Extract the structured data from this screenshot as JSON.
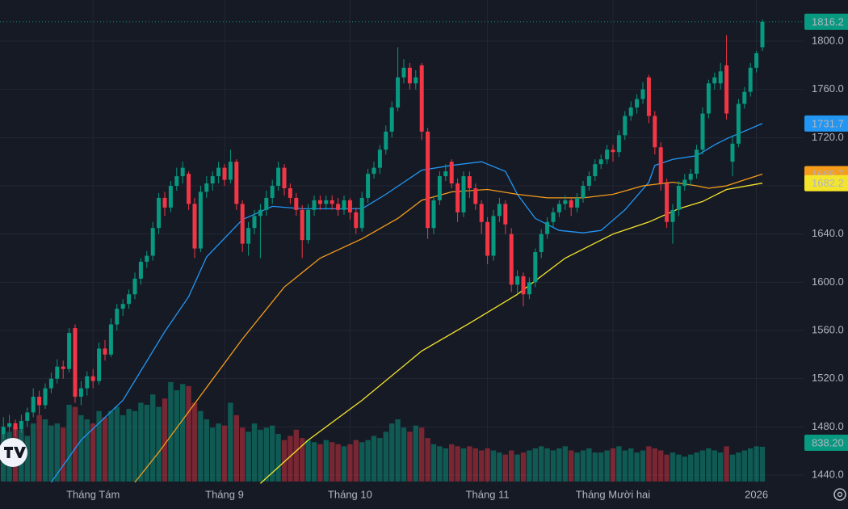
{
  "chart_data": {
    "type": "candlestick",
    "up_color": "#089981",
    "down_color": "#f23645",
    "grid": true,
    "ylim": [
      1433.3,
      1834.2
    ],
    "yticks": [
      {
        "value": 1440,
        "label": "1440.0"
      },
      {
        "value": 1480,
        "label": "1480.0"
      },
      {
        "value": 1520,
        "label": "1520.0"
      },
      {
        "value": 1560,
        "label": "1560.0"
      },
      {
        "value": 1600,
        "label": "1600.0"
      },
      {
        "value": 1640,
        "label": "1640.0"
      },
      {
        "value": 1680,
        "label": "1680.0"
      },
      {
        "value": 1720,
        "label": "1720.0"
      },
      {
        "value": 1760,
        "label": "1760.0"
      },
      {
        "value": 1800,
        "label": "1800.0"
      }
    ],
    "last_value_label": "1816.2",
    "categories": [
      null,
      null,
      null,
      null,
      null,
      null,
      null,
      null,
      null,
      null,
      null,
      null,
      null,
      null,
      null,
      "Tháng Tám",
      null,
      null,
      null,
      null,
      null,
      null,
      null,
      null,
      null,
      null,
      null,
      null,
      null,
      null,
      null,
      null,
      null,
      null,
      null,
      null,
      null,
      "Tháng 9",
      null,
      null,
      null,
      null,
      null,
      null,
      null,
      null,
      null,
      null,
      null,
      null,
      null,
      null,
      null,
      null,
      null,
      null,
      null,
      null,
      "Tháng 10",
      null,
      null,
      null,
      null,
      null,
      null,
      null,
      null,
      null,
      null,
      null,
      null,
      null,
      null,
      null,
      null,
      null,
      null,
      null,
      null,
      null,
      null,
      "Tháng 11",
      null,
      null,
      null,
      null,
      null,
      null,
      null,
      null,
      null,
      null,
      null,
      null,
      null,
      null,
      null,
      null,
      null,
      null,
      null,
      null,
      "Tháng Mười hai",
      null,
      null,
      null,
      null,
      null,
      null,
      null,
      null,
      null,
      null,
      null,
      null,
      null,
      null,
      null,
      null,
      null,
      null,
      null,
      null,
      null,
      null,
      null,
      "2026",
      null
    ],
    "candles": [
      [
        1474,
        1488,
        1470,
        1480
      ],
      [
        1480,
        1490,
        1476,
        1483
      ],
      [
        1483,
        1486,
        1472,
        1478
      ],
      [
        1478,
        1490,
        1475,
        1485
      ],
      [
        1485,
        1496,
        1480,
        1492
      ],
      [
        1492,
        1512,
        1488,
        1505
      ],
      [
        1505,
        1510,
        1490,
        1498
      ],
      [
        1498,
        1516,
        1495,
        1512
      ],
      [
        1512,
        1525,
        1508,
        1520
      ],
      [
        1520,
        1536,
        1516,
        1530
      ],
      [
        1530,
        1535,
        1520,
        1528
      ],
      [
        1528,
        1562,
        1525,
        1558
      ],
      [
        1562,
        1565,
        1500,
        1505
      ],
      [
        1505,
        1518,
        1498,
        1512
      ],
      [
        1512,
        1526,
        1506,
        1522
      ],
      [
        1522,
        1528,
        1512,
        1518
      ],
      [
        1518,
        1550,
        1515,
        1545
      ],
      [
        1545,
        1552,
        1535,
        1540
      ],
      [
        1540,
        1570,
        1538,
        1565
      ],
      [
        1565,
        1582,
        1560,
        1578
      ],
      [
        1578,
        1586,
        1572,
        1582
      ],
      [
        1582,
        1594,
        1578,
        1590
      ],
      [
        1590,
        1608,
        1586,
        1603
      ],
      [
        1603,
        1620,
        1598,
        1617
      ],
      [
        1617,
        1626,
        1612,
        1622
      ],
      [
        1622,
        1650,
        1618,
        1645
      ],
      [
        1645,
        1674,
        1640,
        1670
      ],
      [
        1670,
        1675,
        1655,
        1662
      ],
      [
        1662,
        1684,
        1658,
        1680
      ],
      [
        1680,
        1695,
        1676,
        1688
      ],
      [
        1688,
        1700,
        1682,
        1695
      ],
      [
        1690,
        1692,
        1660,
        1665
      ],
      [
        1665,
        1670,
        1620,
        1628
      ],
      [
        1628,
        1680,
        1625,
        1675
      ],
      [
        1675,
        1688,
        1670,
        1682
      ],
      [
        1682,
        1692,
        1676,
        1688
      ],
      [
        1688,
        1700,
        1682,
        1695
      ],
      [
        1695,
        1698,
        1680,
        1685
      ],
      [
        1685,
        1710,
        1682,
        1700
      ],
      [
        1700,
        1702,
        1660,
        1665
      ],
      [
        1665,
        1668,
        1625,
        1632
      ],
      [
        1632,
        1650,
        1622,
        1645
      ],
      [
        1645,
        1660,
        1640,
        1655
      ],
      [
        1655,
        1665,
        1620,
        1660
      ],
      [
        1660,
        1676,
        1655,
        1670
      ],
      [
        1670,
        1685,
        1665,
        1680
      ],
      [
        1680,
        1700,
        1676,
        1695
      ],
      [
        1695,
        1698,
        1672,
        1678
      ],
      [
        1678,
        1682,
        1665,
        1670
      ],
      [
        1670,
        1674,
        1655,
        1660
      ],
      [
        1660,
        1664,
        1620,
        1635
      ],
      [
        1635,
        1665,
        1632,
        1660
      ],
      [
        1660,
        1672,
        1655,
        1668
      ],
      [
        1668,
        1672,
        1660,
        1665
      ],
      [
        1665,
        1672,
        1660,
        1668
      ],
      [
        1668,
        1672,
        1660,
        1665
      ],
      [
        1665,
        1670,
        1655,
        1660
      ],
      [
        1660,
        1672,
        1656,
        1668
      ],
      [
        1668,
        1670,
        1652,
        1658
      ],
      [
        1658,
        1662,
        1640,
        1645
      ],
      [
        1645,
        1675,
        1642,
        1670
      ],
      [
        1670,
        1694,
        1666,
        1690
      ],
      [
        1690,
        1700,
        1686,
        1695
      ],
      [
        1695,
        1714,
        1690,
        1710
      ],
      [
        1710,
        1730,
        1706,
        1725
      ],
      [
        1725,
        1750,
        1720,
        1745
      ],
      [
        1745,
        1795,
        1742,
        1770
      ],
      [
        1770,
        1785,
        1765,
        1778
      ],
      [
        1778,
        1782,
        1760,
        1765
      ],
      [
        1765,
        1776,
        1760,
        1770
      ],
      [
        1780,
        1782,
        1718,
        1725
      ],
      [
        1725,
        1728,
        1636,
        1645
      ],
      [
        1645,
        1672,
        1640,
        1668
      ],
      [
        1668,
        1692,
        1664,
        1688
      ],
      [
        1688,
        1698,
        1684,
        1692
      ],
      [
        1700,
        1702,
        1678,
        1682
      ],
      [
        1682,
        1686,
        1650,
        1658
      ],
      [
        1658,
        1692,
        1654,
        1688
      ],
      [
        1688,
        1692,
        1670,
        1678
      ],
      [
        1678,
        1682,
        1660,
        1665
      ],
      [
        1665,
        1668,
        1640,
        1650
      ],
      [
        1650,
        1654,
        1615,
        1622
      ],
      [
        1622,
        1660,
        1618,
        1655
      ],
      [
        1655,
        1670,
        1650,
        1665
      ],
      [
        1665,
        1668,
        1640,
        1648
      ],
      [
        1640,
        1645,
        1592,
        1598
      ],
      [
        1598,
        1610,
        1590,
        1605
      ],
      [
        1605,
        1608,
        1580,
        1590
      ],
      [
        1590,
        1604,
        1586,
        1600
      ],
      [
        1600,
        1628,
        1596,
        1625
      ],
      [
        1625,
        1644,
        1620,
        1640
      ],
      [
        1640,
        1654,
        1636,
        1650
      ],
      [
        1650,
        1662,
        1646,
        1658
      ],
      [
        1658,
        1668,
        1654,
        1665
      ],
      [
        1665,
        1672,
        1660,
        1668
      ],
      [
        1668,
        1670,
        1655,
        1662
      ],
      [
        1662,
        1674,
        1658,
        1670
      ],
      [
        1670,
        1684,
        1666,
        1680
      ],
      [
        1680,
        1692,
        1676,
        1688
      ],
      [
        1688,
        1702,
        1684,
        1698
      ],
      [
        1698,
        1706,
        1694,
        1702
      ],
      [
        1702,
        1714,
        1698,
        1710
      ],
      [
        1710,
        1714,
        1700,
        1708
      ],
      [
        1708,
        1726,
        1704,
        1722
      ],
      [
        1722,
        1742,
        1718,
        1738
      ],
      [
        1738,
        1750,
        1734,
        1745
      ],
      [
        1745,
        1756,
        1740,
        1752
      ],
      [
        1752,
        1766,
        1748,
        1760
      ],
      [
        1770,
        1772,
        1732,
        1738
      ],
      [
        1738,
        1742,
        1706,
        1712
      ],
      [
        1712,
        1716,
        1676,
        1682
      ],
      [
        1682,
        1686,
        1645,
        1650
      ],
      [
        1650,
        1665,
        1632,
        1660
      ],
      [
        1660,
        1684,
        1655,
        1680
      ],
      [
        1680,
        1690,
        1676,
        1685
      ],
      [
        1685,
        1694,
        1680,
        1690
      ],
      [
        1690,
        1714,
        1686,
        1710
      ],
      [
        1710,
        1745,
        1706,
        1740
      ],
      [
        1740,
        1768,
        1736,
        1765
      ],
      [
        1765,
        1774,
        1760,
        1770
      ],
      [
        1765,
        1782,
        1760,
        1775
      ],
      [
        1780,
        1805,
        1735,
        1740
      ],
      [
        1700,
        1722,
        1688,
        1715
      ],
      [
        1715,
        1752,
        1712,
        1748
      ],
      [
        1748,
        1762,
        1744,
        1758
      ],
      [
        1758,
        1782,
        1754,
        1778
      ],
      [
        1778,
        1792,
        1774,
        1790
      ],
      [
        1795,
        1818,
        1792,
        1816.2
      ]
    ],
    "volume": {
      "lim": [
        0,
        3000
      ],
      "value_label": "838.20",
      "values": [
        1150,
        1200,
        1300,
        1250,
        1100,
        1400,
        1600,
        1500,
        1350,
        1400,
        1300,
        1850,
        1800,
        1600,
        1500,
        1400,
        1700,
        1550,
        1700,
        1800,
        1600,
        1750,
        1700,
        1900,
        1850,
        2100,
        1800,
        2000,
        2400,
        2200,
        2350,
        2300,
        1900,
        1700,
        1500,
        1300,
        1400,
        1350,
        1900,
        1600,
        1300,
        1200,
        1400,
        1250,
        1300,
        1350,
        1150,
        1000,
        1100,
        1250,
        1050,
        1000,
        950,
        900,
        1000,
        950,
        900,
        850,
        900,
        1000,
        950,
        1000,
        1100,
        1050,
        1200,
        1400,
        1500,
        1300,
        1200,
        1350,
        1300,
        1050,
        900,
        850,
        800,
        900,
        850,
        800,
        850,
        800,
        750,
        800,
        750,
        700,
        650,
        750,
        650,
        700,
        750,
        800,
        850,
        800,
        750,
        800,
        850,
        750,
        700,
        750,
        800,
        700,
        700,
        750,
        800,
        850,
        750,
        800,
        700,
        750,
        850,
        800,
        750,
        650,
        700,
        650,
        600,
        650,
        700,
        750,
        800,
        750,
        700,
        850,
        650,
        700,
        750,
        800,
        850,
        838.2
      ]
    },
    "moving_averages": [
      {
        "color": "#2196f3",
        "value_label": "1731.7",
        "x": [
          8,
          13,
          20,
          27,
          31,
          34,
          40,
          45,
          50,
          56,
          60,
          64,
          70,
          75,
          80,
          84,
          86,
          89,
          93,
          97,
          100,
          104,
          108,
          109,
          112,
          116,
          119,
          121,
          127
        ],
        "values": [
          1434,
          1469,
          1502,
          1559,
          1588,
          1621,
          1652,
          1663,
          1661,
          1661,
          1661,
          1673,
          1693,
          1697,
          1700,
          1692,
          1673,
          1653,
          1643,
          1641,
          1643,
          1660,
          1683,
          1697,
          1702,
          1705,
          1714,
          1719,
          1731.7
        ]
      },
      {
        "color": "#f59c1a",
        "value_label": "1689.7",
        "x": [
          22,
          26,
          33,
          40,
          47,
          53,
          60,
          66,
          70,
          75,
          81,
          86,
          91,
          97,
          102,
          107,
          112,
          116,
          118,
          121,
          124,
          127
        ],
        "values": [
          1434,
          1459,
          1506,
          1553,
          1596,
          1620,
          1636,
          1653,
          1668,
          1675,
          1677,
          1673,
          1670,
          1670,
          1673,
          1680,
          1683,
          1680,
          1678,
          1680,
          1685,
          1689.7
        ]
      },
      {
        "color": "#f5e52a",
        "value_label": "1682.2",
        "x": [
          43,
          51,
          60,
          70,
          78,
          86,
          94,
          102,
          108,
          113,
          117,
          121,
          127
        ],
        "values": [
          1433,
          1469,
          1502,
          1543,
          1566,
          1590,
          1620,
          1640,
          1650,
          1661,
          1667,
          1677,
          1682.2
        ]
      }
    ]
  }
}
